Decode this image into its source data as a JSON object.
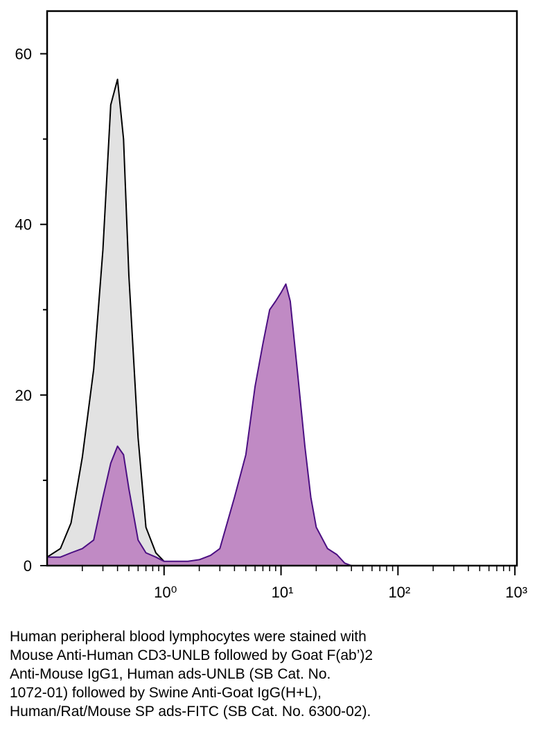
{
  "chart_data": {
    "type": "area",
    "x": [
      0.1,
      0.13,
      0.16,
      0.2,
      0.25,
      0.3,
      0.35,
      0.4,
      0.45,
      0.5,
      0.6,
      0.7,
      0.85,
      1,
      1.3,
      1.6,
      2,
      2.5,
      3,
      4,
      5,
      6,
      7,
      8,
      9,
      10,
      11,
      12,
      14,
      16,
      18,
      20,
      25,
      30,
      35,
      40,
      50,
      1000
    ],
    "series": [
      {
        "color": "#000000",
        "fill": "#e2e2e2",
        "values": [
          1,
          2,
          5,
          12.7,
          23,
          37,
          54,
          57,
          50,
          34,
          15,
          4.5,
          1.5,
          0.5,
          0,
          0,
          0,
          0,
          0,
          0,
          0,
          0,
          0,
          0,
          0,
          0,
          0,
          0,
          0,
          0,
          0,
          0,
          0,
          0,
          0,
          0,
          0,
          0
        ]
      },
      {
        "color": "#4b0f82",
        "fill": "#c08ac4",
        "values": [
          1,
          1,
          1.5,
          2,
          3,
          8,
          12,
          14,
          13,
          9,
          3,
          1.5,
          1,
          0.5,
          0.5,
          0.5,
          0.7,
          1.2,
          2,
          8,
          13,
          21,
          26,
          30,
          31,
          32,
          33,
          31,
          22,
          14,
          8,
          4.5,
          2,
          1.3,
          0.3,
          0,
          0,
          0
        ]
      }
    ],
    "xlog": true,
    "xlim": [
      0.1,
      1040
    ],
    "xticks": [
      {
        "value": 1,
        "label": "10⁰"
      },
      {
        "value": 10,
        "label": "10¹"
      },
      {
        "value": 100,
        "label": "10²"
      },
      {
        "value": 1000,
        "label": "10³"
      }
    ],
    "xminorticks": [
      0.2,
      0.3,
      0.4,
      0.5,
      0.6,
      0.7,
      0.8,
      0.9,
      2,
      3,
      4,
      5,
      6,
      7,
      8,
      9,
      20,
      30,
      40,
      50,
      60,
      70,
      80,
      90,
      200,
      300,
      400,
      500,
      600,
      700,
      800,
      900
    ],
    "ylim": [
      0,
      65
    ],
    "yticks": [
      0,
      20,
      40,
      60
    ],
    "yminorticks": [
      10,
      30,
      50
    ],
    "caption": [
      "Human peripheral blood lymphocytes were stained with",
      "Mouse Anti-Human CD3-UNLB followed by Goat F(ab’)2",
      "Anti-Mouse IgG1, Human ads-UNLB (SB Cat. No.",
      "1072-01) followed by Swine Anti-Goat IgG(H+L),",
      "Human/Rat/Mouse SP ads-FITC (SB Cat. No. 6300-02)."
    ]
  }
}
